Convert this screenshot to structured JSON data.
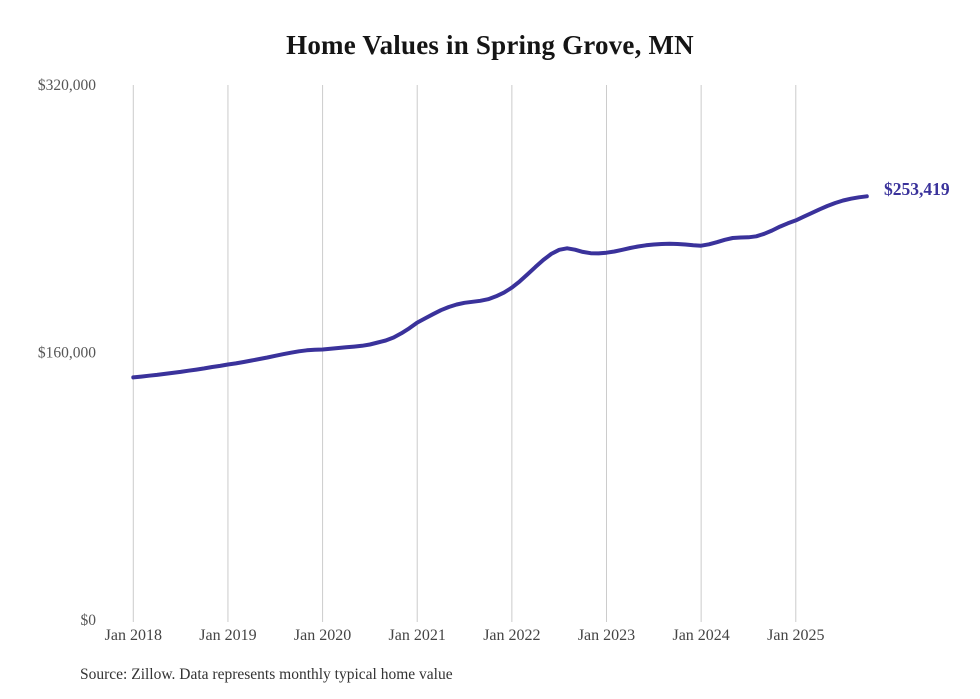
{
  "chart_data": {
    "type": "line",
    "title": "Home Values in Spring Grove, MN",
    "source": "Source: Zillow. Data represents monthly typical home value",
    "end_label": "$253,419",
    "latest_value": 253419,
    "line_color": "#3a329b",
    "grid_color": "#cccccc",
    "legend": "none",
    "grid": "vertical-only",
    "categories": [
      "Jan 2018",
      "Jan 2019",
      "Jan 2020",
      "Jan 2021",
      "Jan 2022",
      "Jan 2023",
      "Jan 2024",
      "Jan 2025"
    ],
    "y_ticks": [
      {
        "label": "$0",
        "value": 0
      },
      {
        "label": "$160,000",
        "value": 160000
      },
      {
        "label": "$320,000",
        "value": 320000
      }
    ],
    "ylim": [
      0,
      320000
    ],
    "frequency": "monthly",
    "start_month": "Jan 2018",
    "end_month": "Oct 2025",
    "values": [
      145100,
      145600,
      146100,
      146600,
      147200,
      147800,
      148400,
      149100,
      149800,
      150500,
      151300,
      152000,
      152800,
      153500,
      154300,
      155200,
      156100,
      157000,
      158000,
      159000,
      159900,
      160700,
      161300,
      161700,
      161800,
      162200,
      162700,
      163100,
      163500,
      164000,
      164800,
      166000,
      167200,
      169000,
      171500,
      174500,
      177900,
      180400,
      182900,
      185300,
      187200,
      188700,
      189700,
      190300,
      190900,
      191900,
      193600,
      195800,
      198800,
      202500,
      206800,
      211200,
      215400,
      219000,
      221400,
      222300,
      221500,
      220200,
      219400,
      219300,
      219700,
      220400,
      221400,
      222500,
      223400,
      224100,
      224600,
      224900,
      225000,
      224900,
      224600,
      224200,
      223900,
      224700,
      226000,
      227400,
      228500,
      228800,
      228900,
      229500,
      231000,
      233000,
      235300,
      237300,
      239000,
      241200,
      243400,
      245600,
      247600,
      249400,
      250900,
      252000,
      252800,
      253419
    ]
  }
}
